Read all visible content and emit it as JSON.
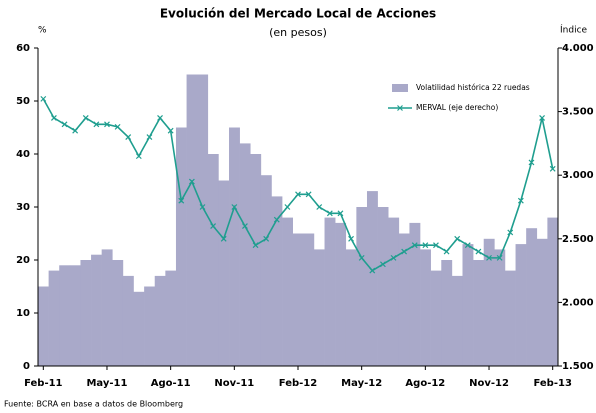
{
  "chart_data": {
    "type": "bar_line",
    "title": "Evolución del Mercado Local de Acciones",
    "subtitle": "(en pesos)",
    "y_label": "%",
    "y2_label": "Índice",
    "source": "Fuente: BCRA en base a datos de Bloomberg",
    "categories": [
      "Feb-11",
      null,
      null,
      null,
      null,
      null,
      "May-11",
      null,
      null,
      null,
      null,
      null,
      "Ago-11",
      null,
      null,
      null,
      null,
      null,
      "Nov-11",
      null,
      null,
      null,
      null,
      null,
      "Feb-12",
      null,
      null,
      null,
      null,
      null,
      "May-12",
      null,
      null,
      null,
      null,
      null,
      "Ago-12",
      null,
      null,
      null,
      null,
      null,
      "Nov-12",
      null,
      null,
      null,
      null,
      null,
      "Feb-13"
    ],
    "series": [
      {
        "name": "Volatilidad histórica 22 ruedas",
        "type": "bar",
        "color": "#a9a9c9",
        "values": [
          15,
          18,
          19,
          19,
          20,
          21,
          22,
          20,
          17,
          14,
          15,
          17,
          18,
          45,
          55,
          55,
          40,
          35,
          45,
          42,
          40,
          36,
          32,
          28,
          25,
          25,
          22,
          28,
          27,
          22,
          30,
          33,
          30,
          28,
          25,
          27,
          22,
          18,
          20,
          17,
          23,
          20,
          24,
          22,
          18,
          23,
          26,
          24,
          28
        ]
      },
      {
        "name": "MERVAL (eje derecho)",
        "type": "line",
        "axis": "y2",
        "color": "#1f9e8f",
        "values": [
          3600,
          3450,
          3400,
          3350,
          3450,
          3400,
          3400,
          3380,
          3300,
          3150,
          3300,
          3450,
          3350,
          2800,
          2950,
          2750,
          2600,
          2500,
          2750,
          2600,
          2450,
          2500,
          2650,
          2750,
          2850,
          2850,
          2750,
          2700,
          2700,
          2500,
          2350,
          2250,
          2300,
          2350,
          2400,
          2450,
          2450,
          2450,
          2400,
          2500,
          2450,
          2400,
          2350,
          2350,
          2550,
          2800,
          3100,
          3450,
          3050
        ]
      }
    ],
    "ylim": [
      0,
      60
    ],
    "yticks": [
      0,
      10,
      20,
      30,
      40,
      50,
      60
    ],
    "y2lim": [
      1500,
      4000
    ],
    "y2ticks": [
      {
        "value": 1500,
        "label": "1.500"
      },
      {
        "value": 2000,
        "label": "2.000"
      },
      {
        "value": 2500,
        "label": "2.500"
      },
      {
        "value": 3000,
        "label": "3.000"
      },
      {
        "value": 3500,
        "label": "3.500"
      },
      {
        "value": 4000,
        "label": "4.000"
      }
    ],
    "grid": false,
    "legend": "upper right"
  }
}
